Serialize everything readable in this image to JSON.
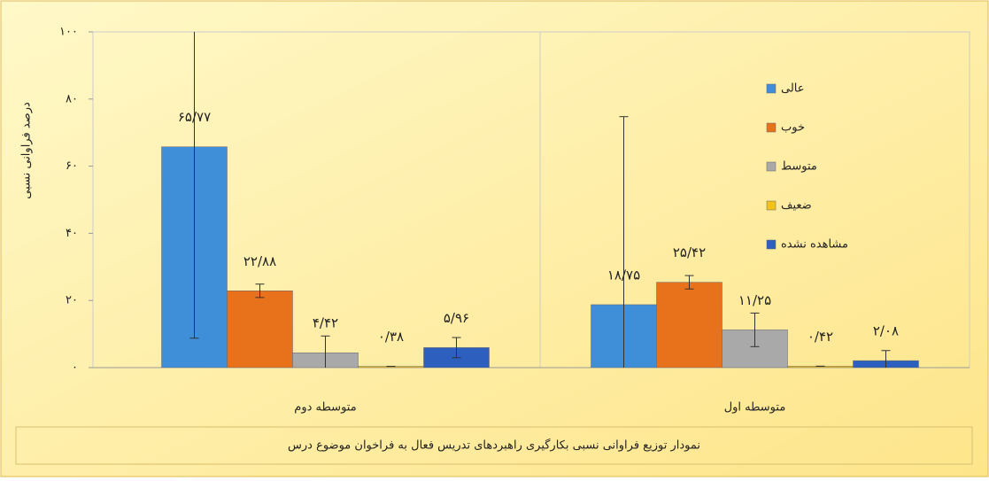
{
  "chart_data": {
    "type": "bar",
    "title": "نمودار توزیع فراوانی نسبی بکارگیری راهبردهای تدریس فعال به فراخوان موضوع درس",
    "y_label": "درصد فراوانی نسبی",
    "categories": [
      "متوسطه دوم",
      "متوسطه اول"
    ],
    "series": [
      {
        "name": "عالی",
        "color": "#3f8fd8",
        "values": [
          65.77,
          18.75
        ],
        "value_labels": [
          "۶۵/۷۷",
          "۱۸/۷۵"
        ],
        "errors": [
          57,
          56
        ]
      },
      {
        "name": "خوب",
        "color": "#e8721c",
        "values": [
          22.88,
          25.42
        ],
        "value_labels": [
          "۲۲/۸۸",
          "۲۵/۴۲"
        ],
        "errors": [
          2,
          2
        ]
      },
      {
        "name": "متوسط",
        "color": "#a9a9a9",
        "values": [
          4.42,
          11.25
        ],
        "value_labels": [
          "۴/۴۲",
          "۱۱/۲۵"
        ],
        "errors": [
          5,
          5
        ]
      },
      {
        "name": "ضعیف",
        "color": "#f2c21a",
        "values": [
          0.38,
          0.42
        ],
        "value_labels": [
          "۰/۳۸",
          "۰/۴۲"
        ],
        "errors": [
          0,
          0
        ]
      },
      {
        "name": "مشاهده نشده",
        "color": "#2c5fbe",
        "values": [
          5.96,
          2.08
        ],
        "value_labels": [
          "۵/۹۶",
          "۲/۰۸"
        ],
        "errors": [
          3,
          3
        ]
      }
    ],
    "ylim": [
      0,
      100
    ],
    "yticks": [
      {
        "value": 0,
        "label": "۰"
      },
      {
        "value": 20,
        "label": "۲۰"
      },
      {
        "value": 40,
        "label": "۴۰"
      },
      {
        "value": 60,
        "label": "۶۰"
      },
      {
        "value": 80,
        "label": "۸۰"
      },
      {
        "value": 100,
        "label": "۱۰۰"
      }
    ],
    "grid": false,
    "legend": "right"
  }
}
